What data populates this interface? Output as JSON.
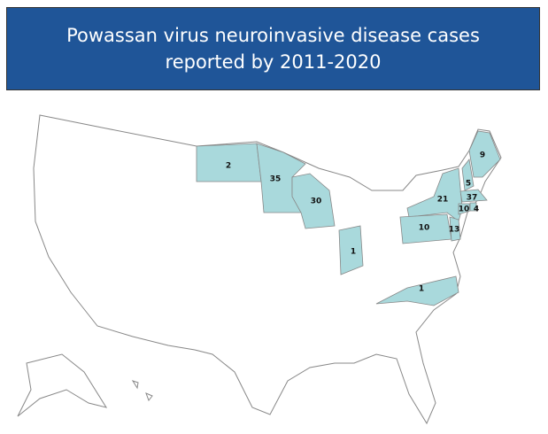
{
  "header": {
    "title": "Powassan virus neuroinvasive disease cases reported by 2011-2020"
  },
  "map": {
    "fill": "#a9d9dc",
    "regions": [
      {
        "value": 2
      },
      {
        "value": 35
      },
      {
        "value": 30
      },
      {
        "value": 1
      },
      {
        "value": 21
      },
      {
        "value": 10
      },
      {
        "value": 13
      },
      {
        "value": 9
      },
      {
        "value": 5
      },
      {
        "value": 37
      },
      {
        "value": 10
      },
      {
        "value": 4
      },
      {
        "value": 1
      }
    ]
  }
}
